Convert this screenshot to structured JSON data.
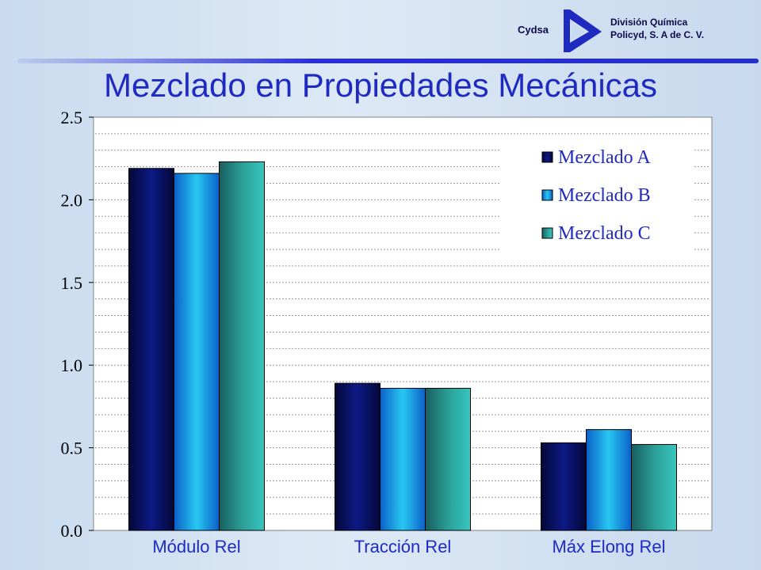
{
  "header": {
    "brand": "Cydsa",
    "division_line1": "División Química",
    "division_line2": "Policyd, S. A de C. V."
  },
  "chart_data": {
    "type": "bar",
    "title": "Mezclado en Propiedades Mecánicas",
    "categories": [
      "Módulo Rel",
      "Tracción Rel",
      "Máx Elong Rel"
    ],
    "series": [
      {
        "name": "Mezclado A",
        "values": [
          2.19,
          0.89,
          0.53
        ],
        "color": "#0a0f5c"
      },
      {
        "name": "Mezclado B",
        "values": [
          2.16,
          0.86,
          0.61
        ],
        "color": "#1aa0e6"
      },
      {
        "name": "Mezclado C",
        "values": [
          2.23,
          0.86,
          0.52
        ],
        "color": "#1e8c84"
      }
    ],
    "ylim": [
      0,
      2.5
    ],
    "yticks": [
      "0.0",
      "0.5",
      "1.0",
      "1.5",
      "2.0",
      "2.5"
    ],
    "grid": true,
    "legend": "top-right"
  }
}
